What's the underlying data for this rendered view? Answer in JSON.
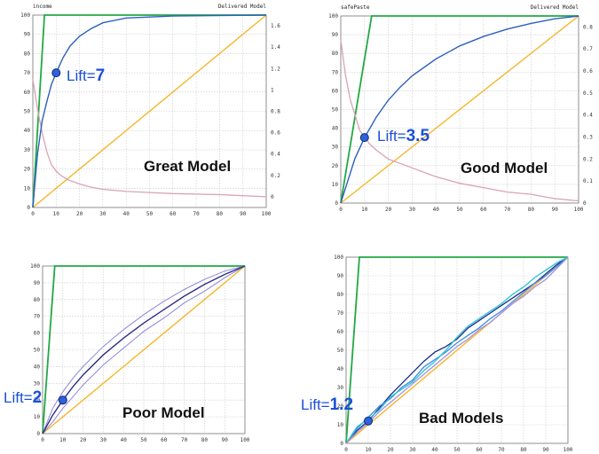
{
  "colors": {
    "grid": "#c8c8c8",
    "frame": "#777777",
    "ideal": "#22a845",
    "random": "#f5b62a",
    "model": "#2d5fc0",
    "lift_curve": "#d9a3b6",
    "dot_fill": "#2f62d9",
    "dot_stroke": "#0c2a7a",
    "poor_main": "#2e2f87",
    "poor_band": "#8f86d8",
    "bad_series": [
      "#1a2c8c",
      "#3f8ce0",
      "#29c3d6",
      "#a590e0"
    ]
  },
  "chart_data": [
    {
      "type": "line",
      "title_left": "income",
      "title_right": "Delivered Model",
      "caption": "Great Model",
      "lift_prefix": "Lift=",
      "lift_value": "7",
      "lift_point": [
        10,
        70
      ],
      "xlim": [
        0,
        100
      ],
      "ylim": [
        0,
        100
      ],
      "xticks": [
        "0",
        "10",
        "20",
        "30",
        "40",
        "50",
        "60",
        "70",
        "80",
        "90",
        "100"
      ],
      "yticks": [
        "0",
        "10",
        "20",
        "30",
        "40",
        "50",
        "60",
        "70",
        "80",
        "90",
        "100"
      ],
      "y2lim": [
        -0.1,
        1.7
      ],
      "y2ticks": [
        "0",
        "0.2",
        "0.4",
        "0.6",
        "0.8",
        "1",
        "1.2",
        "1.4",
        "1.6"
      ],
      "ideal": [
        [
          0,
          0
        ],
        [
          5,
          100
        ],
        [
          100,
          100
        ]
      ],
      "random": [
        [
          0,
          0
        ],
        [
          100,
          100
        ]
      ],
      "model": [
        [
          0,
          0
        ],
        [
          2,
          28
        ],
        [
          4,
          45
        ],
        [
          6,
          55
        ],
        [
          8,
          64
        ],
        [
          10,
          70
        ],
        [
          13,
          78
        ],
        [
          16,
          84
        ],
        [
          20,
          89
        ],
        [
          25,
          93
        ],
        [
          30,
          96
        ],
        [
          40,
          98.5
        ],
        [
          60,
          99.5
        ],
        [
          100,
          100
        ]
      ],
      "lift_curve": [
        [
          0,
          1.1
        ],
        [
          2,
          0.82
        ],
        [
          4,
          0.6
        ],
        [
          6,
          0.42
        ],
        [
          8,
          0.3
        ],
        [
          10,
          0.24
        ],
        [
          12,
          0.2
        ],
        [
          15,
          0.16
        ],
        [
          20,
          0.12
        ],
        [
          25,
          0.09
        ],
        [
          30,
          0.07
        ],
        [
          40,
          0.05
        ],
        [
          50,
          0.04
        ],
        [
          60,
          0.03
        ],
        [
          80,
          0.02
        ],
        [
          100,
          0.0
        ]
      ]
    },
    {
      "type": "line",
      "title_left": "safePaste",
      "title_right": "Delivered Model",
      "caption": "Good Model",
      "lift_prefix": "Lift=",
      "lift_value": "3.5",
      "lift_point": [
        10,
        35
      ],
      "xlim": [
        0,
        100
      ],
      "ylim": [
        0,
        100
      ],
      "xticks": [
        "0",
        "10",
        "20",
        "30",
        "40",
        "50",
        "60",
        "70",
        "80",
        "90",
        "100"
      ],
      "yticks": [
        "0",
        "10",
        "20",
        "30",
        "40",
        "50",
        "60",
        "70",
        "80",
        "90",
        "100"
      ],
      "y2lim": [
        0,
        0.85
      ],
      "y2ticks": [
        "0",
        "0.1",
        "0.2",
        "0.3",
        "0.4",
        "0.5",
        "0.6",
        "0.7",
        "0.8"
      ],
      "ideal": [
        [
          0,
          0
        ],
        [
          13,
          100
        ],
        [
          100,
          100
        ]
      ],
      "random": [
        [
          0,
          0
        ],
        [
          100,
          100
        ]
      ],
      "model": [
        [
          0,
          0
        ],
        [
          3,
          12
        ],
        [
          6,
          24
        ],
        [
          10,
          35
        ],
        [
          15,
          46
        ],
        [
          20,
          55
        ],
        [
          25,
          62
        ],
        [
          30,
          68
        ],
        [
          40,
          77
        ],
        [
          50,
          84
        ],
        [
          60,
          89
        ],
        [
          70,
          93
        ],
        [
          80,
          96
        ],
        [
          90,
          98.5
        ],
        [
          100,
          100
        ]
      ],
      "lift_curve": [
        [
          0,
          0.74
        ],
        [
          2,
          0.58
        ],
        [
          4,
          0.47
        ],
        [
          6,
          0.4
        ],
        [
          8,
          0.33
        ],
        [
          10,
          0.3
        ],
        [
          12,
          0.27
        ],
        [
          15,
          0.24
        ],
        [
          20,
          0.2
        ],
        [
          25,
          0.18
        ],
        [
          30,
          0.16
        ],
        [
          40,
          0.12
        ],
        [
          50,
          0.09
        ],
        [
          60,
          0.07
        ],
        [
          70,
          0.05
        ],
        [
          80,
          0.04
        ],
        [
          90,
          0.02
        ],
        [
          100,
          0.01
        ]
      ]
    },
    {
      "type": "line",
      "caption": "Poor Model",
      "lift_prefix": "Lift=",
      "lift_value": "2",
      "lift_point": [
        10,
        20
      ],
      "xlim": [
        0,
        100
      ],
      "ylim": [
        0,
        100
      ],
      "xticks": [
        "0",
        "10",
        "20",
        "30",
        "40",
        "50",
        "60",
        "70",
        "80",
        "90",
        "100"
      ],
      "yticks": [
        "0",
        "10",
        "20",
        "30",
        "40",
        "50",
        "60",
        "70",
        "80",
        "90",
        "100"
      ],
      "ideal": [
        [
          0,
          0
        ],
        [
          6,
          100
        ],
        [
          100,
          100
        ]
      ],
      "random": [
        [
          0,
          0
        ],
        [
          100,
          100
        ]
      ],
      "model": [
        [
          0,
          0
        ],
        [
          5,
          11
        ],
        [
          10,
          20
        ],
        [
          15,
          28
        ],
        [
          20,
          35
        ],
        [
          30,
          47
        ],
        [
          40,
          57
        ],
        [
          50,
          66
        ],
        [
          60,
          74
        ],
        [
          70,
          82
        ],
        [
          80,
          89
        ],
        [
          90,
          95
        ],
        [
          100,
          100
        ]
      ],
      "band_upper": [
        [
          0,
          0
        ],
        [
          5,
          15
        ],
        [
          10,
          25
        ],
        [
          15,
          33
        ],
        [
          20,
          40
        ],
        [
          30,
          52
        ],
        [
          40,
          62
        ],
        [
          50,
          71
        ],
        [
          60,
          79
        ],
        [
          70,
          86
        ],
        [
          80,
          92
        ],
        [
          90,
          97
        ],
        [
          100,
          100
        ]
      ],
      "band_lower": [
        [
          0,
          0
        ],
        [
          5,
          7
        ],
        [
          10,
          15
        ],
        [
          15,
          22
        ],
        [
          20,
          29
        ],
        [
          30,
          41
        ],
        [
          40,
          51
        ],
        [
          50,
          61
        ],
        [
          60,
          69
        ],
        [
          70,
          78
        ],
        [
          80,
          85
        ],
        [
          90,
          93
        ],
        [
          100,
          100
        ]
      ]
    },
    {
      "type": "line",
      "caption": "Bad Models",
      "lift_prefix": "Lift=",
      "lift_value": "1.2",
      "lift_point": [
        10,
        12
      ],
      "xlim": [
        0,
        100
      ],
      "ylim": [
        0,
        100
      ],
      "xticks": [
        "0",
        "10",
        "20",
        "30",
        "40",
        "50",
        "60",
        "70",
        "80",
        "90",
        "100"
      ],
      "yticks": [
        "0",
        "10",
        "20",
        "30",
        "40",
        "50",
        "60",
        "70",
        "80",
        "90",
        "100"
      ],
      "ideal": [
        [
          0,
          0
        ],
        [
          6,
          100
        ],
        [
          100,
          100
        ]
      ],
      "random": [
        [
          0,
          0
        ],
        [
          100,
          100
        ]
      ],
      "series": [
        {
          "values": [
            [
              0,
              0
            ],
            [
              5,
              7
            ],
            [
              10,
              12
            ],
            [
              15,
              19
            ],
            [
              20,
              26
            ],
            [
              25,
              32
            ],
            [
              30,
              38
            ],
            [
              35,
              44
            ],
            [
              40,
              49
            ],
            [
              45,
              52
            ],
            [
              50,
              56
            ],
            [
              55,
              62
            ],
            [
              60,
              66
            ],
            [
              65,
              70
            ],
            [
              70,
              74
            ],
            [
              75,
              78
            ],
            [
              80,
              82
            ],
            [
              85,
              86
            ],
            [
              90,
              91
            ],
            [
              95,
              96
            ],
            [
              100,
              100
            ]
          ]
        },
        {
          "values": [
            [
              0,
              0
            ],
            [
              5,
              8
            ],
            [
              10,
              14
            ],
            [
              15,
              20
            ],
            [
              20,
              24
            ],
            [
              25,
              30
            ],
            [
              30,
              34
            ],
            [
              35,
              41
            ],
            [
              40,
              45
            ],
            [
              45,
              49
            ],
            [
              50,
              54
            ],
            [
              55,
              58
            ],
            [
              60,
              62
            ],
            [
              65,
              67
            ],
            [
              70,
              71
            ],
            [
              75,
              76
            ],
            [
              80,
              81
            ],
            [
              85,
              86
            ],
            [
              90,
              90
            ],
            [
              95,
              95
            ],
            [
              100,
              100
            ]
          ]
        },
        {
          "values": [
            [
              0,
              0
            ],
            [
              5,
              9
            ],
            [
              10,
              13
            ],
            [
              15,
              18
            ],
            [
              20,
              25
            ],
            [
              25,
              29
            ],
            [
              30,
              33
            ],
            [
              35,
              39
            ],
            [
              40,
              44
            ],
            [
              45,
              50
            ],
            [
              50,
              57
            ],
            [
              55,
              63
            ],
            [
              60,
              67
            ],
            [
              65,
              71
            ],
            [
              70,
              75
            ],
            [
              75,
              80
            ],
            [
              80,
              84
            ],
            [
              85,
              89
            ],
            [
              90,
              93
            ],
            [
              95,
              97
            ],
            [
              100,
              100
            ]
          ]
        },
        {
          "values": [
            [
              0,
              0
            ],
            [
              5,
              6
            ],
            [
              10,
              11
            ],
            [
              15,
              17
            ],
            [
              20,
              22
            ],
            [
              25,
              27
            ],
            [
              30,
              32
            ],
            [
              35,
              37
            ],
            [
              40,
              42
            ],
            [
              45,
              47
            ],
            [
              50,
              52
            ],
            [
              55,
              56
            ],
            [
              60,
              61
            ],
            [
              65,
              65
            ],
            [
              70,
              70
            ],
            [
              75,
              75
            ],
            [
              80,
              79
            ],
            [
              85,
              84
            ],
            [
              90,
              88
            ],
            [
              95,
              94
            ],
            [
              100,
              100
            ]
          ]
        }
      ]
    }
  ]
}
